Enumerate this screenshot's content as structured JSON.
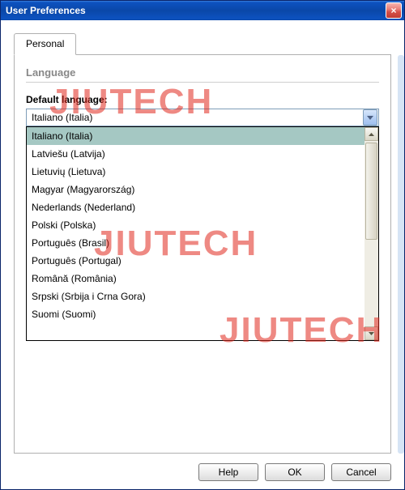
{
  "window": {
    "title": "User Preferences",
    "close_glyph": "×"
  },
  "tabs": [
    {
      "label": "Personal",
      "active": true
    }
  ],
  "language_section": {
    "title": "Language",
    "field_label": "Default language:",
    "selected_value": "Italiano (Italia)",
    "highlighted_index": 0,
    "options": [
      "Italiano (Italia)",
      "Latviešu (Latvija)",
      "Lietuvių (Lietuva)",
      "Magyar (Magyarország)",
      "Nederlands (Nederland)",
      "Polski (Polska)",
      "Português (Brasil)",
      "Português (Portugal)",
      "Română (România)",
      "Srpski (Srbija i Crna Gora)",
      "Suomi (Suomi)"
    ]
  },
  "buttons": {
    "help": "Help",
    "ok": "OK",
    "cancel": "Cancel"
  },
  "watermark": {
    "text": "JIUTECH",
    "color": "rgba(224,40,30,0.55)"
  },
  "colors": {
    "titlebar_gradient": [
      "#3a81dd",
      "#0a47a8"
    ],
    "close_btn_gradient": [
      "#f7b3ae",
      "#c13c34"
    ],
    "panel_border": "#b0b0b0",
    "combo_border": "#7f9db9",
    "dropdown_highlight": "#a5c8c3",
    "section_title": "#888888",
    "side_scroll": "#d6e4f5"
  }
}
